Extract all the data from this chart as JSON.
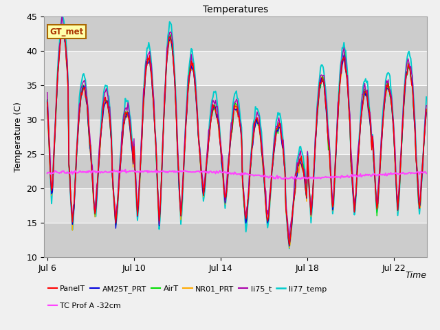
{
  "title": "Temperatures",
  "xlabel": "Time",
  "ylabel": "Temperature (C)",
  "ylim": [
    10,
    45
  ],
  "xlim_days": [
    5.85,
    23.5
  ],
  "yticks": [
    10,
    15,
    20,
    25,
    30,
    35,
    40,
    45
  ],
  "xtick_labels": [
    "Jul 6",
    "Jul 10",
    "Jul 14",
    "Jul 18",
    "Jul 22"
  ],
  "xtick_positions": [
    6,
    10,
    14,
    18,
    22
  ],
  "plot_bg_color": "#d8d8d8",
  "fig_bg_color": "#f0f0f0",
  "series": {
    "PanelT": {
      "color": "#ff0000",
      "lw": 1.0
    },
    "AM25T_PRT": {
      "color": "#0000dd",
      "lw": 1.0
    },
    "AirT": {
      "color": "#00dd00",
      "lw": 1.0
    },
    "NR01_PRT": {
      "color": "#ffaa00",
      "lw": 1.0
    },
    "li75_t": {
      "color": "#aa00aa",
      "lw": 1.0
    },
    "li77_temp": {
      "color": "#00cccc",
      "lw": 1.4
    },
    "TC Prof A -32cm": {
      "color": "#ff44ff",
      "lw": 1.5
    }
  },
  "annotation": {
    "text": "GT_met",
    "color": "#aa3300",
    "bg": "#ffffaa",
    "border": "#aa6600"
  },
  "grid_color": "#ffffff",
  "title_fontsize": 10,
  "label_fontsize": 9,
  "tick_fontsize": 9,
  "legend_fontsize": 8
}
